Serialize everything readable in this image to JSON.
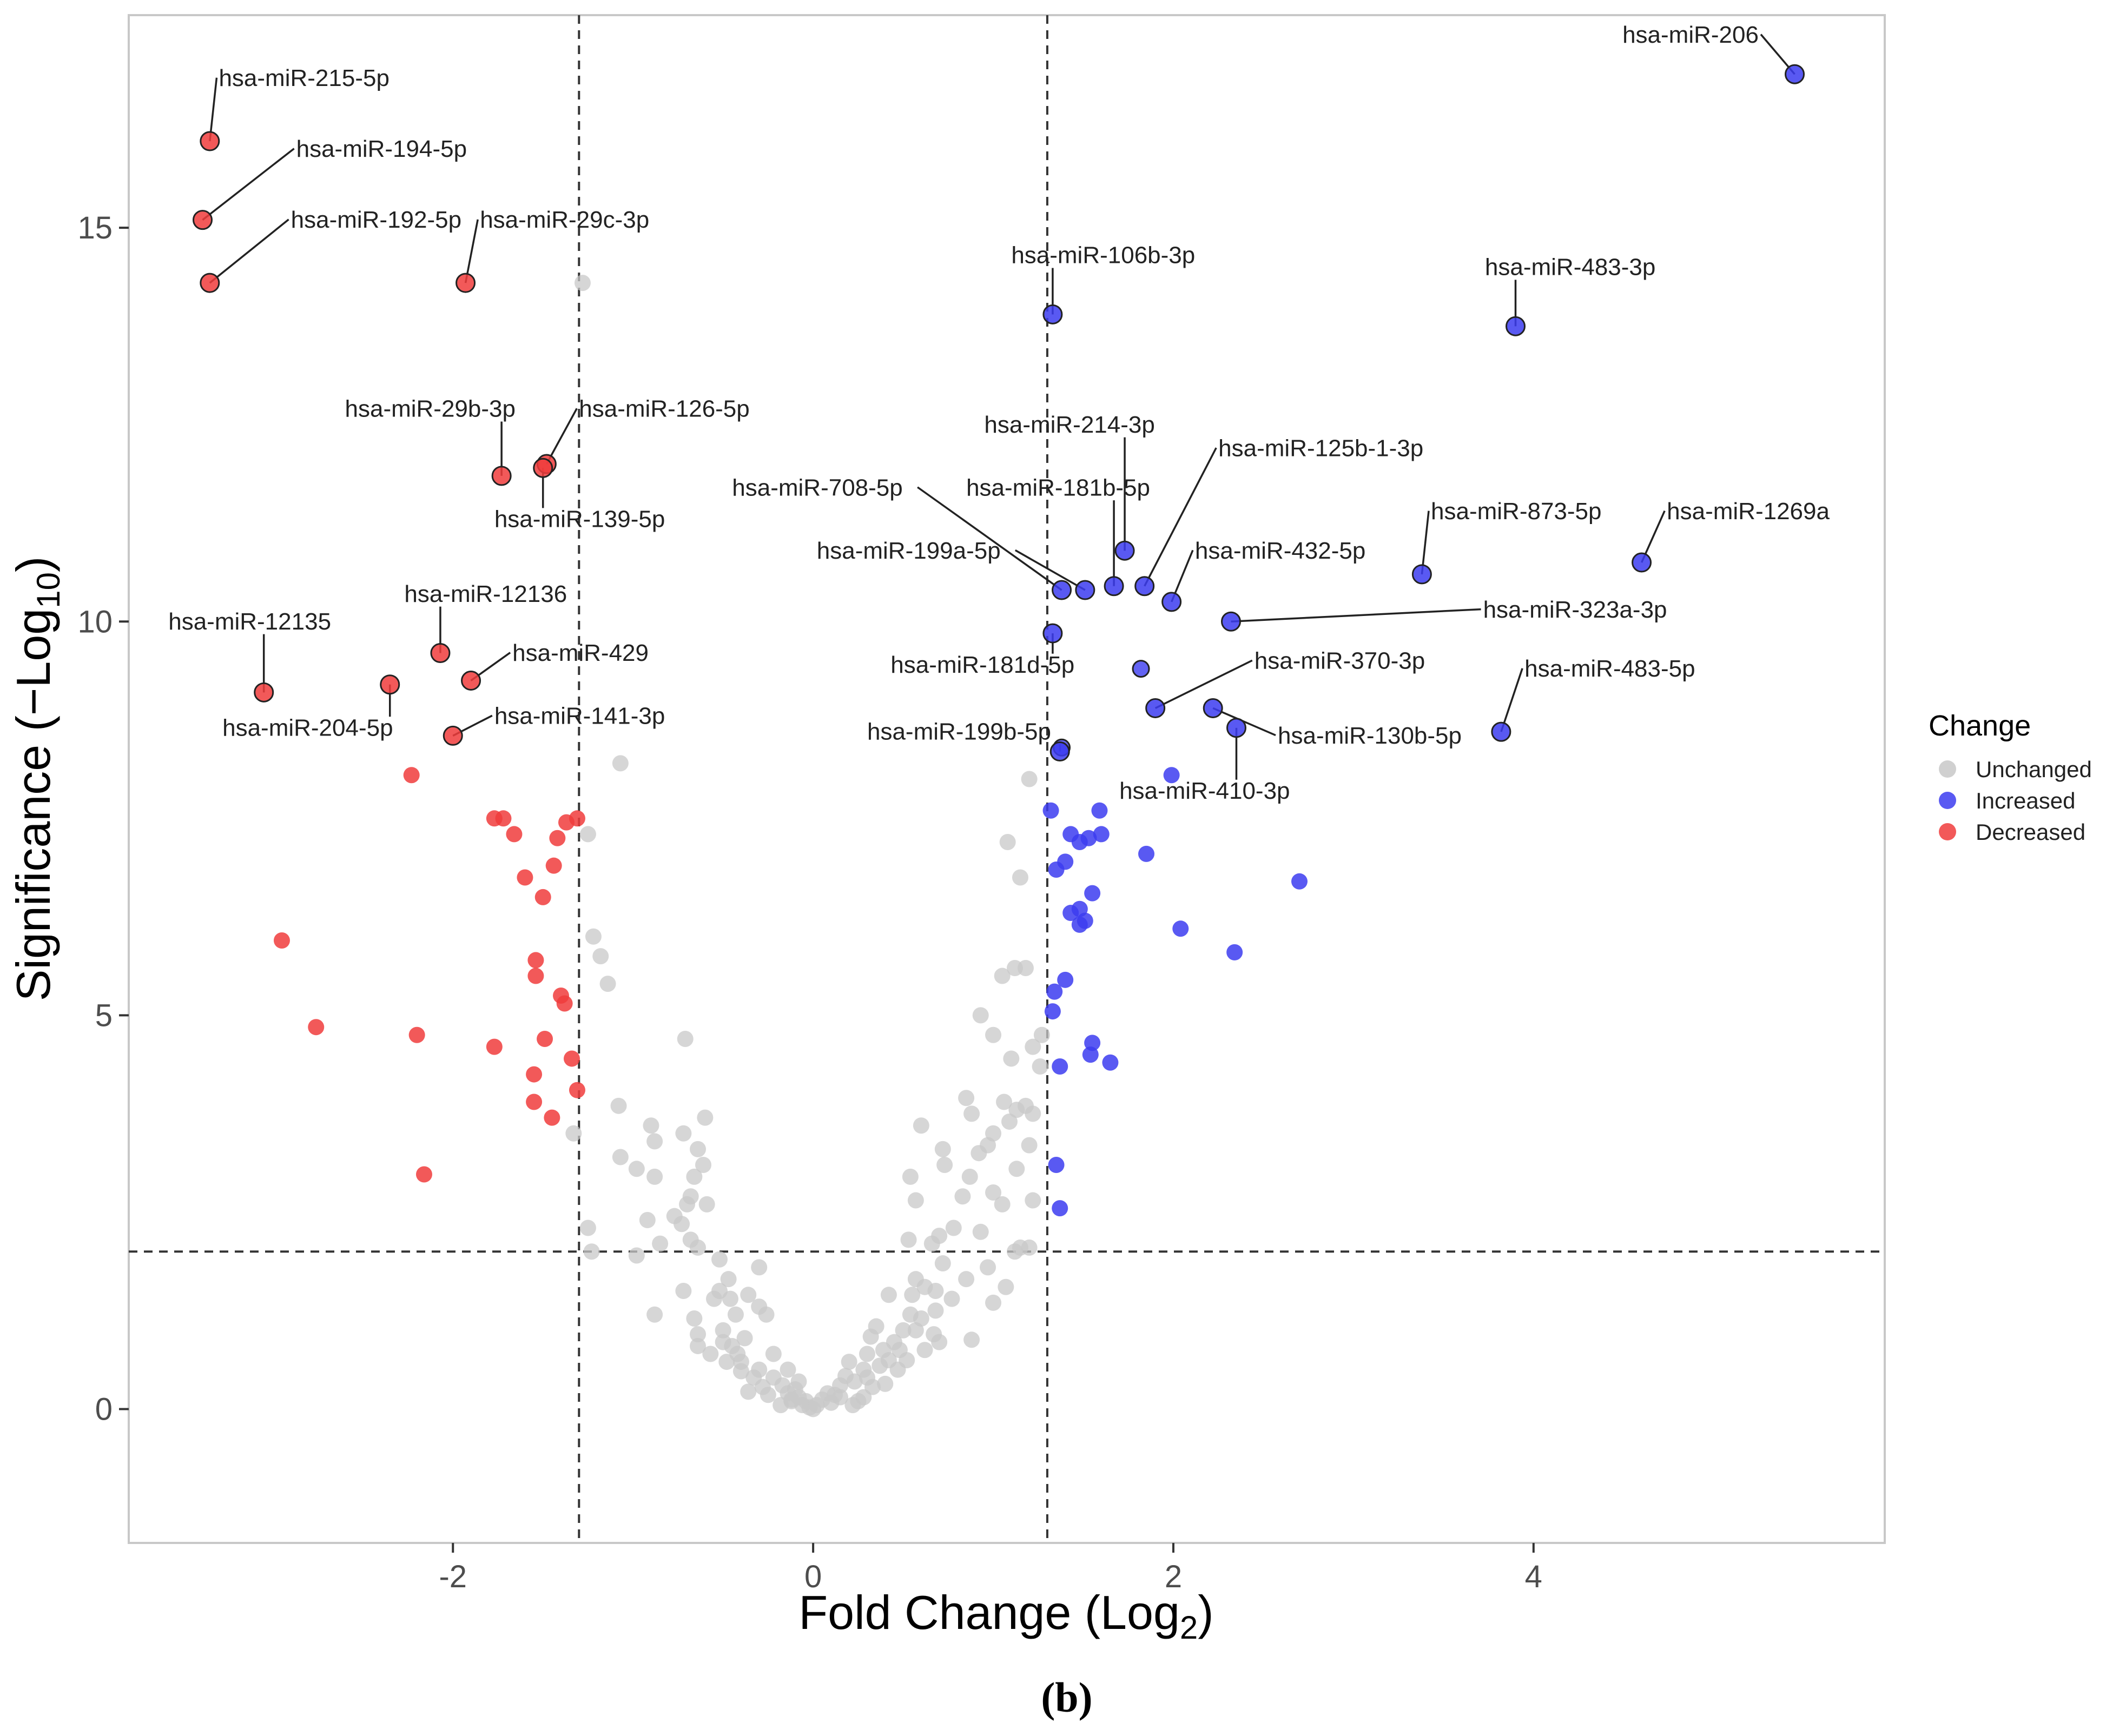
{
  "chart_data": {
    "type": "scatter",
    "title": "",
    "xlabel": "Fold Change (Log",
    "xlabel_sub": "2",
    "xlabel_suffix": ")",
    "ylabel": "Significance (−Log",
    "ylabel_sub": "10",
    "ylabel_suffix": ")",
    "panel_label": "(b)",
    "xlim": [
      -3.8,
      5.95
    ],
    "ylim": [
      -1.7,
      17.7
    ],
    "x_ticks": [
      -2,
      0,
      2,
      4
    ],
    "x_tick_labels": [
      "-2",
      "0",
      "2",
      "4"
    ],
    "y_ticks": [
      0,
      5,
      10,
      15
    ],
    "y_tick_labels": [
      "0",
      "5",
      "10",
      "15"
    ],
    "thresholds": {
      "fold_change": [
        -1.3,
        1.3
      ],
      "significance": 2.0
    },
    "grid": false,
    "legend": {
      "title": "Change",
      "position": "right",
      "entries": [
        {
          "label": "Unchanged",
          "color": "#c8c8c8"
        },
        {
          "label": "Increased",
          "color": "#3c3cf0"
        },
        {
          "label": "Decreased",
          "color": "#f03c3c"
        }
      ]
    },
    "colors": {
      "Unchanged": "#c8c8c8",
      "Increased": "#3c3cf0",
      "Decreased": "#f03c3c"
    },
    "labeled_points": [
      {
        "label": "hsa-miR-215-5p",
        "x": -3.35,
        "y": 16.1,
        "change": "Decreased",
        "lx": -3.3,
        "ly": 16.8,
        "anchor": "start"
      },
      {
        "label": "hsa-miR-194-5p",
        "x": -3.39,
        "y": 15.1,
        "change": "Decreased",
        "lx": -2.87,
        "ly": 15.9,
        "anchor": "start"
      },
      {
        "label": "hsa-miR-192-5p",
        "x": -3.35,
        "y": 14.3,
        "change": "Decreased",
        "lx": -2.9,
        "ly": 15.0,
        "anchor": "start"
      },
      {
        "label": "hsa-miR-29c-3p",
        "x": -1.93,
        "y": 14.3,
        "change": "Decreased",
        "lx": -1.85,
        "ly": 15.0,
        "anchor": "start"
      },
      {
        "label": "hsa-miR-29b-3p",
        "x": -1.73,
        "y": 11.85,
        "change": "Decreased",
        "lx": -2.6,
        "ly": 12.6,
        "anchor": "start"
      },
      {
        "label": "hsa-miR-126-5p",
        "x": -1.48,
        "y": 12.0,
        "change": "Decreased",
        "lx": -1.3,
        "ly": 12.6,
        "anchor": "start"
      },
      {
        "label": "hsa-miR-139-5p",
        "x": -1.5,
        "y": 11.95,
        "change": "Decreased",
        "lx": -1.77,
        "ly": 11.2,
        "anchor": "start"
      },
      {
        "label": "hsa-miR-12136",
        "x": -2.07,
        "y": 9.6,
        "change": "Decreased",
        "lx": -2.27,
        "ly": 10.25,
        "anchor": "start"
      },
      {
        "label": "hsa-miR-12135",
        "x": -3.05,
        "y": 9.1,
        "change": "Decreased",
        "lx": -3.58,
        "ly": 9.9,
        "anchor": "start"
      },
      {
        "label": "hsa-miR-204-5p",
        "x": -2.35,
        "y": 9.2,
        "change": "Decreased",
        "lx": -3.28,
        "ly": 8.55,
        "anchor": "start"
      },
      {
        "label": "hsa-miR-429",
        "x": -1.9,
        "y": 9.25,
        "change": "Decreased",
        "lx": -1.67,
        "ly": 9.5,
        "anchor": "start"
      },
      {
        "label": "hsa-miR-141-3p",
        "x": -2.0,
        "y": 8.55,
        "change": "Decreased",
        "lx": -1.77,
        "ly": 8.7,
        "anchor": "start"
      },
      {
        "label": "hsa-miR-206",
        "x": 5.45,
        "y": 16.95,
        "change": "Increased",
        "lx": 5.25,
        "ly": 17.35,
        "anchor": "end"
      },
      {
        "label": "hsa-miR-106b-3p",
        "x": 1.33,
        "y": 13.9,
        "change": "Increased",
        "lx": 1.1,
        "ly": 14.55,
        "anchor": "start"
      },
      {
        "label": "hsa-miR-483-3p",
        "x": 3.9,
        "y": 13.75,
        "change": "Increased",
        "lx": 3.73,
        "ly": 14.4,
        "anchor": "start"
      },
      {
        "label": "hsa-miR-214-3p",
        "x": 1.73,
        "y": 10.9,
        "change": "Increased",
        "lx": 0.95,
        "ly": 12.4,
        "anchor": "start"
      },
      {
        "label": "hsa-miR-125b-1-3p",
        "x": 1.84,
        "y": 10.45,
        "change": "Increased",
        "lx": 2.25,
        "ly": 12.1,
        "anchor": "start"
      },
      {
        "label": "hsa-miR-181b-5p",
        "x": 1.67,
        "y": 10.45,
        "change": "Increased",
        "lx": 0.85,
        "ly": 11.6,
        "anchor": "start"
      },
      {
        "label": "hsa-miR-708-5p",
        "x": 1.38,
        "y": 10.4,
        "change": "Increased",
        "lx": -0.45,
        "ly": 11.6,
        "anchor": "start"
      },
      {
        "label": "hsa-miR-873-5p",
        "x": 3.38,
        "y": 10.6,
        "change": "Increased",
        "lx": 3.43,
        "ly": 11.3,
        "anchor": "start"
      },
      {
        "label": "hsa-miR-1269a",
        "x": 4.6,
        "y": 10.75,
        "change": "Increased",
        "lx": 4.74,
        "ly": 11.3,
        "anchor": "start"
      },
      {
        "label": "hsa-miR-199a-5p",
        "x": 1.51,
        "y": 10.4,
        "change": "Increased",
        "lx": 0.02,
        "ly": 10.8,
        "anchor": "start"
      },
      {
        "label": "hsa-miR-432-5p",
        "x": 1.99,
        "y": 10.25,
        "change": "Increased",
        "lx": 2.12,
        "ly": 10.8,
        "anchor": "start"
      },
      {
        "label": "hsa-miR-323a-3p",
        "x": 2.32,
        "y": 10.0,
        "change": "Increased",
        "lx": 3.72,
        "ly": 10.05,
        "anchor": "start"
      },
      {
        "label": "hsa-miR-181d-5p",
        "x": 1.33,
        "y": 9.85,
        "change": "Increased",
        "lx": 0.43,
        "ly": 9.35,
        "anchor": "start"
      },
      {
        "label": "hsa-miR-370-3p",
        "x": 1.9,
        "y": 8.9,
        "change": "Increased",
        "lx": 2.45,
        "ly": 9.4,
        "anchor": "start"
      },
      {
        "label": "hsa-miR-483-5p",
        "x": 3.82,
        "y": 8.6,
        "change": "Increased",
        "lx": 3.95,
        "ly": 9.3,
        "anchor": "start"
      },
      {
        "label": "hsa-miR-130b-5p",
        "x": 2.22,
        "y": 8.9,
        "change": "Increased",
        "lx": 2.58,
        "ly": 8.45,
        "anchor": "start"
      },
      {
        "label": "hsa-miR-199b-5p",
        "x": 1.37,
        "y": 8.35,
        "change": "Increased",
        "lx": 0.3,
        "ly": 8.5,
        "anchor": "start"
      },
      {
        "label": "hsa-miR-410-3p",
        "x": 2.35,
        "y": 8.65,
        "change": "Increased",
        "lx": 1.7,
        "ly": 7.75,
        "anchor": "start"
      }
    ],
    "extra_points": [
      {
        "x": 1.82,
        "y": 9.4,
        "change": "Increased"
      },
      {
        "x": 1.38,
        "y": 8.4,
        "change": "Increased"
      }
    ],
    "unlabeled_decreased": [
      [
        -2.23,
        8.05
      ],
      [
        -1.77,
        7.5
      ],
      [
        -1.72,
        7.5
      ],
      [
        -1.66,
        7.3
      ],
      [
        -1.37,
        7.45
      ],
      [
        -1.42,
        7.25
      ],
      [
        -1.31,
        7.5
      ],
      [
        -1.6,
        6.75
      ],
      [
        -1.44,
        6.9
      ],
      [
        -1.5,
        6.5
      ],
      [
        -2.95,
        5.95
      ],
      [
        -1.54,
        5.7
      ],
      [
        -1.54,
        5.5
      ],
      [
        -1.4,
        5.25
      ],
      [
        -1.38,
        5.15
      ],
      [
        -2.76,
        4.85
      ],
      [
        -2.2,
        4.75
      ],
      [
        -1.49,
        4.7
      ],
      [
        -1.77,
        4.6
      ],
      [
        -1.34,
        4.45
      ],
      [
        -1.55,
        4.25
      ],
      [
        -1.31,
        4.05
      ],
      [
        -1.55,
        3.9
      ],
      [
        -1.45,
        3.7
      ],
      [
        -2.16,
        2.98
      ]
    ],
    "unlabeled_increased": [
      [
        1.32,
        7.6
      ],
      [
        1.43,
        7.3
      ],
      [
        1.48,
        7.2
      ],
      [
        1.53,
        7.25
      ],
      [
        1.6,
        7.3
      ],
      [
        1.59,
        7.6
      ],
      [
        1.85,
        7.05
      ],
      [
        1.99,
        8.05
      ],
      [
        1.35,
        6.85
      ],
      [
        1.4,
        6.95
      ],
      [
        1.55,
        6.55
      ],
      [
        1.43,
        6.3
      ],
      [
        1.48,
        6.35
      ],
      [
        1.48,
        6.15
      ],
      [
        1.51,
        6.2
      ],
      [
        2.7,
        6.7
      ],
      [
        2.04,
        6.1
      ],
      [
        2.34,
        5.8
      ],
      [
        1.4,
        5.45
      ],
      [
        1.34,
        5.3
      ],
      [
        1.33,
        5.05
      ],
      [
        1.55,
        4.65
      ],
      [
        1.54,
        4.5
      ],
      [
        1.37,
        4.35
      ],
      [
        1.65,
        4.4
      ],
      [
        1.35,
        3.1
      ],
      [
        1.37,
        2.55
      ]
    ],
    "unchanged_points": [
      [
        -1.28,
        14.3
      ],
      [
        -1.07,
        8.2
      ],
      [
        -1.25,
        7.3
      ],
      [
        1.2,
        8.0
      ],
      [
        1.08,
        7.2
      ],
      [
        1.15,
        6.75
      ],
      [
        1.12,
        5.6
      ],
      [
        1.05,
        5.5
      ],
      [
        1.18,
        5.6
      ],
      [
        -1.22,
        6.0
      ],
      [
        -1.18,
        5.75
      ],
      [
        -1.14,
        5.4
      ],
      [
        1.0,
        4.75
      ],
      [
        -0.71,
        4.7
      ],
      [
        0.93,
        5.0
      ],
      [
        1.22,
        4.6
      ],
      [
        1.26,
        4.35
      ],
      [
        1.1,
        4.45
      ],
      [
        1.27,
        4.75
      ],
      [
        -1.08,
        3.85
      ],
      [
        -1.33,
        3.5
      ],
      [
        -0.9,
        3.6
      ],
      [
        -0.88,
        3.4
      ],
      [
        -0.72,
        3.5
      ],
      [
        -0.6,
        3.7
      ],
      [
        -0.64,
        3.3
      ],
      [
        1.09,
        3.65
      ],
      [
        1.13,
        3.8
      ],
      [
        1.18,
        3.85
      ],
      [
        1.22,
        3.75
      ],
      [
        1.06,
        3.9
      ],
      [
        0.85,
        3.95
      ],
      [
        0.88,
        3.75
      ],
      [
        1.0,
        3.5
      ],
      [
        0.97,
        3.35
      ],
      [
        0.6,
        3.6
      ],
      [
        0.72,
        3.3
      ],
      [
        0.92,
        3.25
      ],
      [
        1.2,
        3.35
      ],
      [
        -1.07,
        3.2
      ],
      [
        -0.98,
        3.05
      ],
      [
        -0.88,
        2.95
      ],
      [
        -0.66,
        2.95
      ],
      [
        -0.61,
        3.1
      ],
      [
        -0.68,
        2.7
      ],
      [
        0.54,
        2.95
      ],
      [
        0.73,
        3.1
      ],
      [
        0.87,
        2.95
      ],
      [
        1.13,
        3.05
      ],
      [
        0.57,
        2.65
      ],
      [
        0.83,
        2.7
      ],
      [
        1.0,
        2.75
      ],
      [
        1.05,
        2.6
      ],
      [
        1.22,
        2.65
      ],
      [
        -0.7,
        2.6
      ],
      [
        -0.59,
        2.6
      ],
      [
        -0.77,
        2.45
      ],
      [
        -0.92,
        2.4
      ],
      [
        -0.73,
        2.35
      ],
      [
        -0.64,
        2.05
      ],
      [
        -1.25,
        2.3
      ],
      [
        -1.23,
        2.0
      ],
      [
        -0.98,
        1.95
      ],
      [
        -0.85,
        2.1
      ],
      [
        0.53,
        2.15
      ],
      [
        0.66,
        2.1
      ],
      [
        0.7,
        2.2
      ],
      [
        0.78,
        2.3
      ],
      [
        0.93,
        2.25
      ],
      [
        1.12,
        2.0
      ],
      [
        1.2,
        2.05
      ],
      [
        -0.68,
        2.15
      ],
      [
        -0.72,
        1.5
      ],
      [
        -0.52,
        1.9
      ],
      [
        -0.47,
        1.65
      ],
      [
        -0.46,
        1.4
      ],
      [
        -0.3,
        1.8
      ],
      [
        -0.3,
        1.3
      ],
      [
        -0.52,
        1.5
      ],
      [
        -0.55,
        1.4
      ],
      [
        -0.36,
        1.45
      ],
      [
        -0.26,
        1.2
      ],
      [
        0.42,
        1.45
      ],
      [
        0.55,
        1.45
      ],
      [
        0.62,
        1.55
      ],
      [
        0.68,
        1.5
      ],
      [
        0.57,
        1.65
      ],
      [
        0.72,
        1.85
      ],
      [
        0.68,
        1.25
      ],
      [
        0.77,
        1.4
      ],
      [
        0.85,
        1.65
      ],
      [
        0.97,
        1.8
      ],
      [
        1.15,
        2.05
      ],
      [
        1.0,
        1.35
      ],
      [
        1.07,
        1.55
      ],
      [
        -0.88,
        1.2
      ],
      [
        -0.66,
        1.15
      ],
      [
        -0.43,
        1.2
      ],
      [
        -0.5,
        1.0
      ],
      [
        -0.38,
        0.9
      ],
      [
        -0.64,
        0.95
      ],
      [
        -0.64,
        0.8
      ],
      [
        -0.45,
        0.8
      ],
      [
        -0.4,
        0.6
      ],
      [
        -0.57,
        0.7
      ],
      [
        -0.42,
        0.7
      ],
      [
        -0.3,
        0.5
      ],
      [
        -0.22,
        0.7
      ],
      [
        -0.22,
        0.4
      ],
      [
        -0.17,
        0.3
      ],
      [
        -0.14,
        0.5
      ],
      [
        -0.14,
        0.2
      ],
      [
        -0.12,
        0.1
      ],
      [
        -0.1,
        0.25
      ],
      [
        -0.08,
        0.15
      ],
      [
        -0.06,
        0.05
      ],
      [
        -0.04,
        0.1
      ],
      [
        -0.02,
        0.02
      ],
      [
        0.02,
        0.05
      ],
      [
        0.05,
        0.12
      ],
      [
        0.08,
        0.2
      ],
      [
        0.1,
        0.08
      ],
      [
        0.12,
        0.18
      ],
      [
        0.15,
        0.3
      ],
      [
        0.18,
        0.42
      ],
      [
        0.2,
        0.6
      ],
      [
        0.23,
        0.35
      ],
      [
        0.28,
        0.5
      ],
      [
        0.3,
        0.7
      ],
      [
        0.32,
        0.92
      ],
      [
        0.37,
        0.55
      ],
      [
        0.39,
        0.75
      ],
      [
        0.42,
        0.62
      ],
      [
        0.45,
        0.85
      ],
      [
        0.48,
        0.75
      ],
      [
        0.5,
        1.0
      ],
      [
        0.54,
        1.2
      ],
      [
        0.57,
        1.0
      ],
      [
        0.6,
        1.15
      ],
      [
        0.67,
        0.95
      ],
      [
        0.7,
        0.85
      ],
      [
        0.88,
        0.88
      ],
      [
        0.35,
        1.05
      ],
      [
        0.47,
        0.5
      ],
      [
        -0.28,
        0.28
      ],
      [
        -0.25,
        0.18
      ],
      [
        -0.33,
        0.4
      ],
      [
        -0.4,
        0.48
      ],
      [
        -0.48,
        0.6
      ],
      [
        -0.36,
        0.22
      ],
      [
        0.28,
        0.15
      ],
      [
        0.33,
        0.28
      ],
      [
        0.4,
        0.32
      ],
      [
        0.25,
        0.1
      ],
      [
        0.15,
        0.15
      ],
      [
        -0.18,
        0.05
      ],
      [
        -0.08,
        0.35
      ],
      [
        0.0,
        0.0
      ],
      [
        0.3,
        0.4
      ],
      [
        -0.5,
        0.85
      ],
      [
        0.22,
        0.05
      ],
      [
        -0.12,
        0.12
      ],
      [
        0.62,
        0.75
      ],
      [
        0.52,
        0.62
      ]
    ]
  }
}
